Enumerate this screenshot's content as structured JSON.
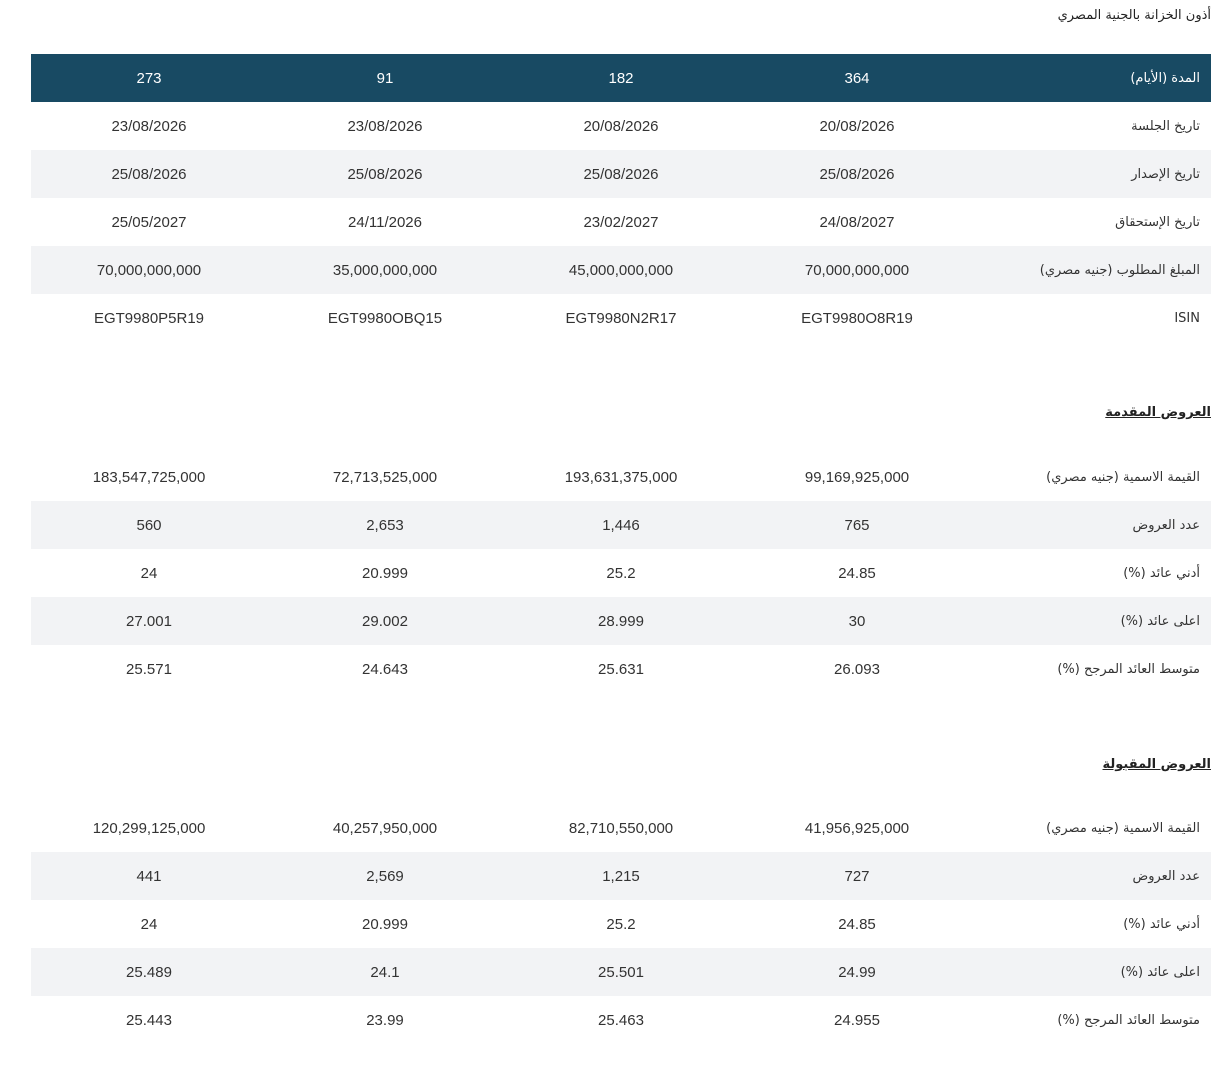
{
  "title": "أذون الخزانة بالجنية المصري",
  "tables": [
    {
      "header": {
        "label": "المدة (الأيام)",
        "cells": [
          "364",
          "182",
          "91",
          "273"
        ]
      },
      "rows": [
        {
          "label": "تاريخ الجلسة",
          "cells": [
            "20/08/2026",
            "20/08/2026",
            "23/08/2026",
            "23/08/2026"
          ]
        },
        {
          "label": "تاريخ الإصدار",
          "cells": [
            "25/08/2026",
            "25/08/2026",
            "25/08/2026",
            "25/08/2026"
          ]
        },
        {
          "label": "تاريخ الإستحقاق",
          "cells": [
            "24/08/2027",
            "23/02/2027",
            "24/11/2026",
            "25/05/2027"
          ]
        },
        {
          "label": "المبلغ المطلوب (جنيه مصري)",
          "cells": [
            "70,000,000,000",
            "45,000,000,000",
            "35,000,000,000",
            "70,000,000,000"
          ]
        },
        {
          "label": "ISIN",
          "cells": [
            "EGT9980O8R19",
            "EGT9980N2R17",
            "EGT9980OBQ15",
            "EGT9980P5R19"
          ]
        }
      ]
    },
    {
      "heading": "العروض المقدمة",
      "rows": [
        {
          "label": "القيمة الاسمية (جنيه مصري)",
          "cells": [
            "99,169,925,000",
            "193,631,375,000",
            "72,713,525,000",
            "183,547,725,000"
          ]
        },
        {
          "label": "عدد العروض",
          "cells": [
            "765",
            "1,446",
            "2,653",
            "560"
          ]
        },
        {
          "label": "أدني عائد (%)",
          "cells": [
            "24.85",
            "25.2",
            "20.999",
            "24"
          ]
        },
        {
          "label": "اعلى عائد (%)",
          "cells": [
            "30",
            "28.999",
            "29.002",
            "27.001"
          ]
        },
        {
          "label": "متوسط العائد المرجح (%)",
          "cells": [
            "26.093",
            "25.631",
            "24.643",
            "25.571"
          ]
        }
      ]
    },
    {
      "heading": "العروض المقبولة",
      "rows": [
        {
          "label": "القيمة الاسمية (جنيه مصري)",
          "cells": [
            "41,956,925,000",
            "82,710,550,000",
            "40,257,950,000",
            "120,299,125,000"
          ]
        },
        {
          "label": "عدد العروض",
          "cells": [
            "727",
            "1,215",
            "2,569",
            "441"
          ]
        },
        {
          "label": "أدني عائد (%)",
          "cells": [
            "24.85",
            "25.2",
            "20.999",
            "24"
          ]
        },
        {
          "label": "اعلى عائد (%)",
          "cells": [
            "24.99",
            "25.501",
            "24.1",
            "25.489"
          ]
        },
        {
          "label": "متوسط العائد المرجح (%)",
          "cells": [
            "24.955",
            "25.463",
            "23.99",
            "25.443"
          ]
        }
      ]
    }
  ]
}
